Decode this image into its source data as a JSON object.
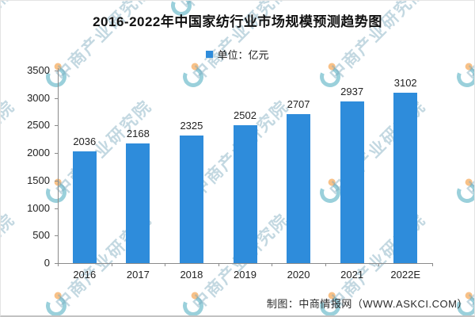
{
  "title": "2016-2022年中国家纺行业市场规模预测趋势图",
  "legend": {
    "label": "单位：亿元",
    "marker_color": "#2E8CDB"
  },
  "chart_data": {
    "type": "bar",
    "categories": [
      "2016",
      "2017",
      "2018",
      "2019",
      "2020",
      "2021",
      "2022E"
    ],
    "values": [
      2036,
      2168,
      2325,
      2502,
      2707,
      2937,
      3102
    ],
    "title": "2016-2022年中国家纺行业市场规模预测趋势图",
    "xlabel": "",
    "ylabel": "",
    "unit": "亿元",
    "ylim": [
      0,
      3500
    ],
    "ytick_step": 500,
    "yticks": [
      0,
      500,
      1000,
      1500,
      2000,
      2500,
      3000,
      3500
    ],
    "bar_color": "#2E8CDB",
    "value_labels_shown": true,
    "grid": false,
    "legend": "单位：亿元",
    "legend_position": "top-center"
  },
  "footer": {
    "credit": "制图：中商情报网（WWW.ASKCI.COM）"
  },
  "watermark": {
    "text": "中商产业研究院",
    "logo_color": "#2098B0",
    "logo_dot_color": "#F28410"
  }
}
